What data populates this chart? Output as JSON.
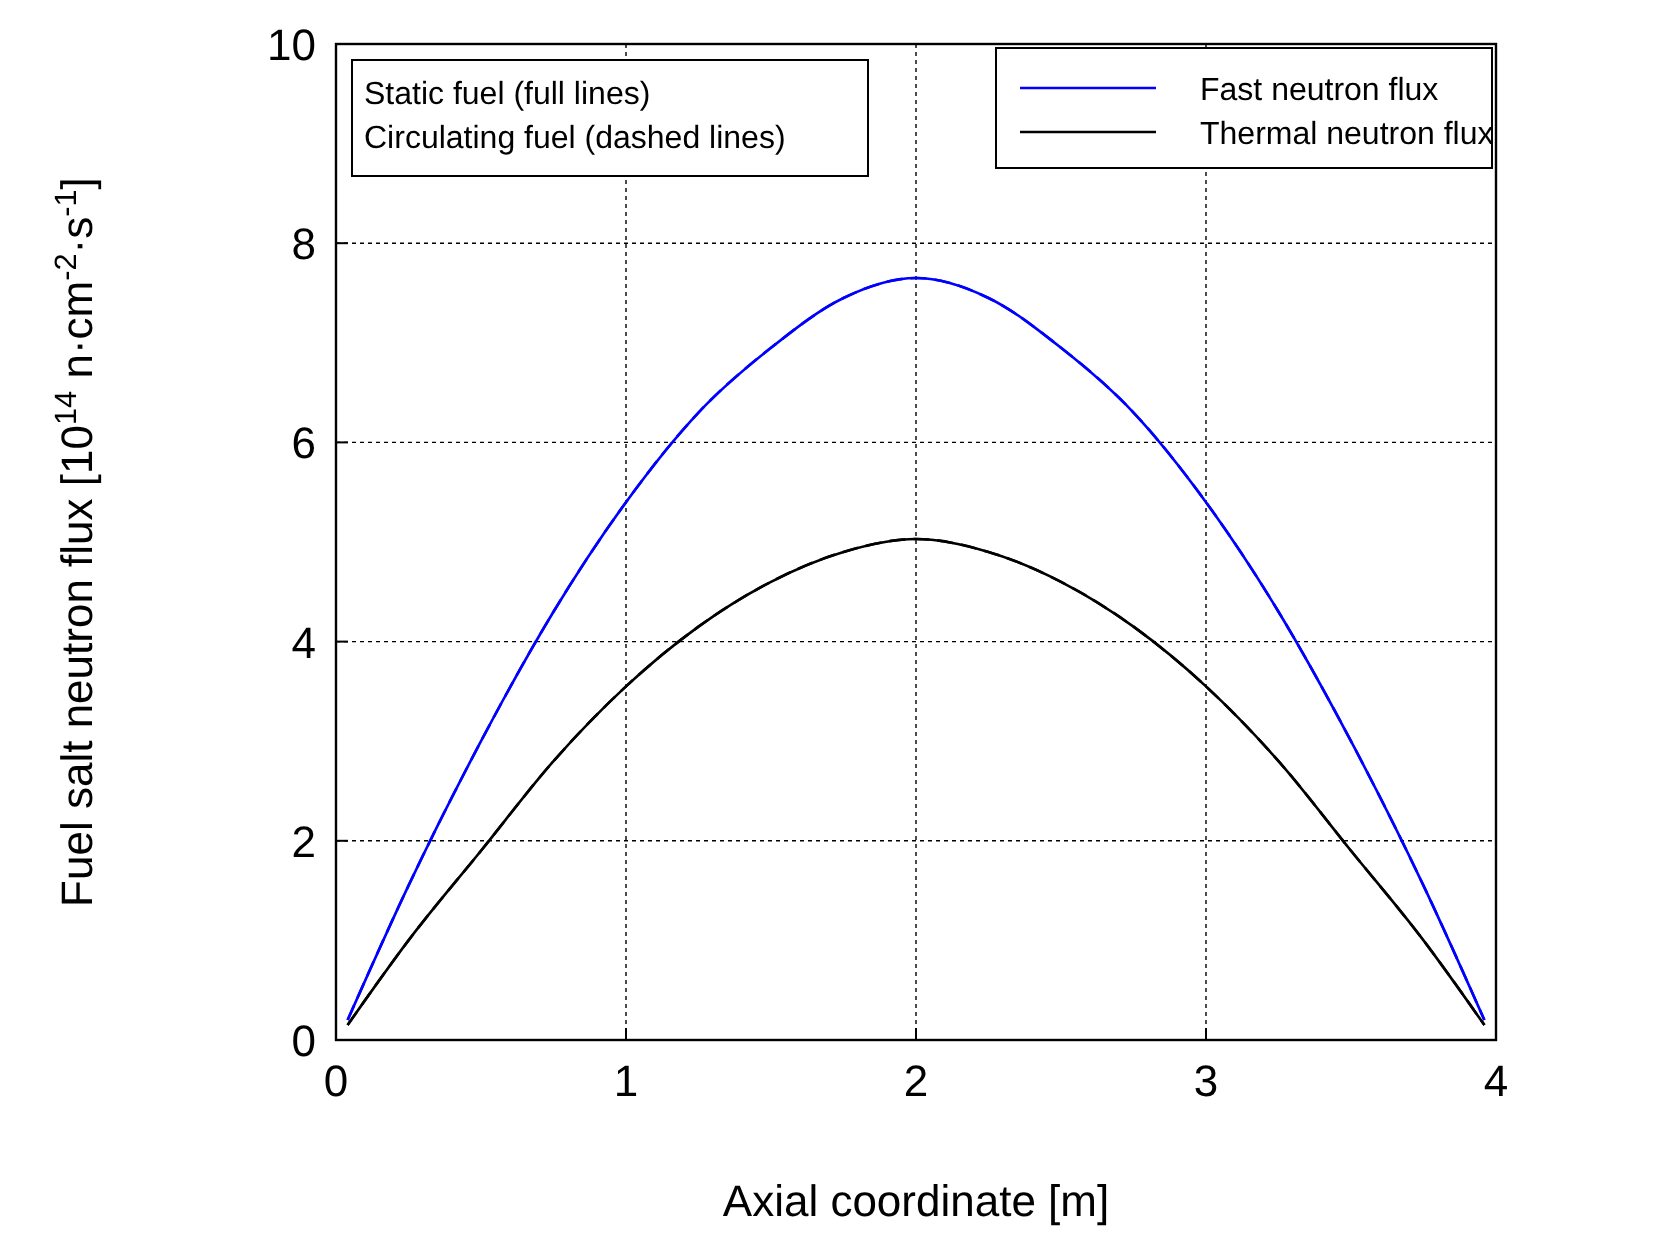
{
  "chart_data": {
    "type": "line",
    "xlabel": "Axial coordinate [m]",
    "ylabel": "Fuel salt neutron flux [10$^{14}$ n·cm$^{-2}$·s$^{-1}$]",
    "x": [
      0.04,
      0.25,
      0.5,
      0.75,
      1,
      1.25,
      1.5,
      1.75,
      2,
      2.25,
      2.5,
      2.75,
      3,
      3.25,
      3.5,
      3.75,
      3.96
    ],
    "xlim": [
      0,
      4
    ],
    "xticks": [
      0,
      1,
      2,
      3,
      4
    ],
    "ylim": [
      0,
      10
    ],
    "yticks": [
      0,
      2,
      4,
      6,
      8,
      10
    ],
    "grid": true,
    "legend": "top right",
    "marker": "none",
    "annotations": [
      "Static fuel (full lines)",
      "Circulating fuel (dashed lines)"
    ],
    "series": [
      {
        "name": "Fast neutron flux",
        "color": "#0000ff",
        "line_style": "solid",
        "values": [
          0.2,
          1.55,
          3.0,
          4.3,
          5.4,
          6.3,
          6.95,
          7.45,
          7.65,
          7.45,
          6.95,
          6.3,
          5.4,
          4.3,
          3.0,
          1.55,
          0.2
        ]
      },
      {
        "name": "Thermal neutron flux",
        "color": "#000000",
        "line_style": "solid",
        "values": [
          0.15,
          1.0,
          1.9,
          2.8,
          3.55,
          4.15,
          4.6,
          4.9,
          5.03,
          4.9,
          4.6,
          4.15,
          3.55,
          2.8,
          1.9,
          1.0,
          0.15
        ]
      },
      {
        "color": "#0000ff",
        "line_style": "dashed",
        "values": [
          0.2,
          1.55,
          3.0,
          4.3,
          5.4,
          6.3,
          6.95,
          7.45,
          7.65,
          7.45,
          6.95,
          6.3,
          5.4,
          4.3,
          3.0,
          1.55,
          0.2
        ]
      },
      {
        "color": "#000000",
        "line_style": "dashed",
        "values": [
          0.15,
          1.0,
          1.9,
          2.8,
          3.55,
          4.15,
          4.6,
          4.9,
          5.03,
          4.9,
          4.6,
          4.15,
          3.55,
          2.8,
          1.9,
          1.0,
          0.15
        ]
      }
    ]
  }
}
